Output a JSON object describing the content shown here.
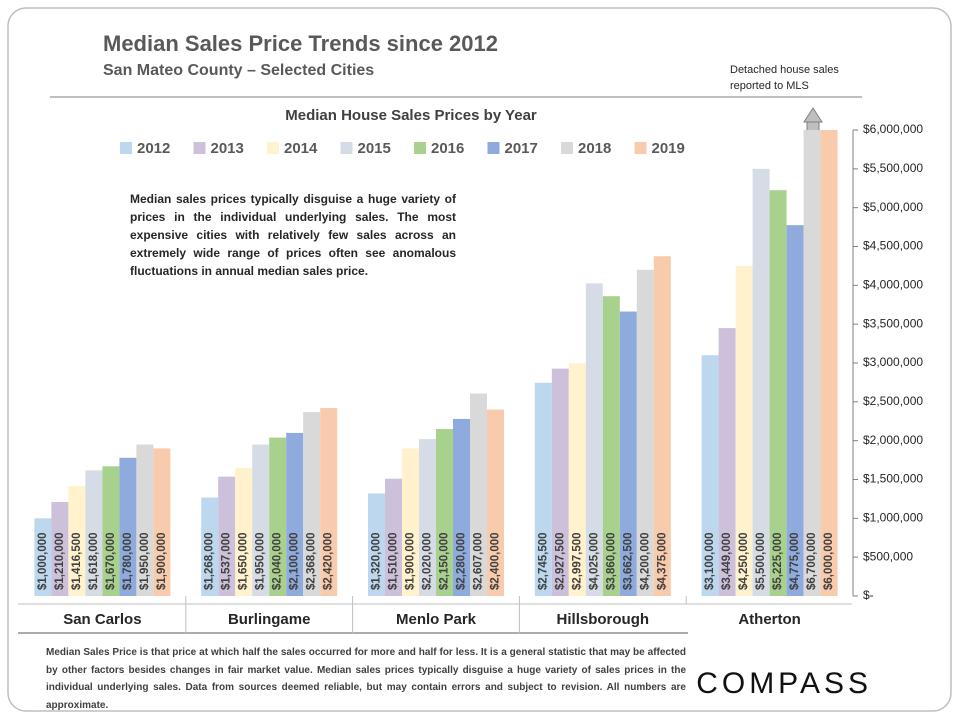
{
  "chart_data": {
    "type": "bar",
    "title": "Median Sales Price Trends since 2012",
    "subtitle": "San Mateo County – Selected Cities",
    "chart_title": "Median House Sales Prices by Year",
    "annotation": "Detached house sales reported to MLS",
    "description": "Median sales prices typically disguise a huge variety of prices in the individual underlying sales. The most expensive cities with relatively few sales across an extremely wide range of prices often see anomalous fluctuations in annual median sales price.",
    "footnote": "Median Sales Price is that price at which half the sales occurred for more and half for less. It is a general statistic that may be affected by other factors besides changes in fair market value. Median sales prices typically disguise a huge variety of sales prices in the individual underlying sales. Data from sources deemed reliable, but may contain errors and subject to revision.  All numbers are approximate.",
    "logo": "COMPASS",
    "categories": [
      "San Carlos",
      "Burlingame",
      "Menlo Park",
      "Hillsborough",
      "Atherton"
    ],
    "series": [
      {
        "name": "2012",
        "color": "#bdd7ee",
        "values": [
          1000000,
          1268000,
          1320000,
          2745500,
          3100000
        ],
        "value_labels": [
          "$1,000,000",
          "$1,268,000",
          "$1,320,000",
          "$2,745,500",
          "$3,100,000"
        ]
      },
      {
        "name": "2013",
        "color": "#ccc0da",
        "values": [
          1210000,
          1537000,
          1510000,
          2927500,
          3449000
        ],
        "value_labels": [
          "$1,210,000",
          "$1,537,000",
          "$1,510,000",
          "$2,927,500",
          "$3,449,000"
        ]
      },
      {
        "name": "2014",
        "color": "#fff2cc",
        "values": [
          1416500,
          1650000,
          1900000,
          2997500,
          4250000
        ],
        "value_labels": [
          "$1,416,500",
          "$1,650,000",
          "$1,900,000",
          "$2,997,500",
          "$4,250,000"
        ]
      },
      {
        "name": "2015",
        "color": "#d6dce5",
        "values": [
          1618000,
          1950000,
          2020000,
          4025000,
          5500000
        ],
        "value_labels": [
          "$1,618,000",
          "$1,950,000",
          "$2,020,000",
          "$4,025,000",
          "$5,500,000"
        ]
      },
      {
        "name": "2016",
        "color": "#a9d18e",
        "values": [
          1670000,
          2040000,
          2150000,
          3860000,
          5225000
        ],
        "value_labels": [
          "$1,670,000",
          "$2,040,000",
          "$2,150,000",
          "$3,860,000",
          "$5,225,000"
        ]
      },
      {
        "name": "2017",
        "color": "#8faadc",
        "values": [
          1780000,
          2100000,
          2280000,
          3662500,
          4775000
        ],
        "value_labels": [
          "$1,780,000",
          "$2,100,000",
          "$2,280,000",
          "$3,662,500",
          "$4,775,000"
        ]
      },
      {
        "name": "2018",
        "color": "#d9d9d9",
        "values": [
          1950000,
          2368000,
          2607000,
          4200000,
          6700000
        ],
        "value_labels": [
          "$1,950,000",
          "$2,368,000",
          "$2,607,000",
          "$4,200,000",
          "$6,700,000"
        ]
      },
      {
        "name": "2019",
        "color": "#f8cbad",
        "values": [
          1900000,
          2420000,
          2400000,
          4375000,
          6000000
        ],
        "value_labels": [
          "$1,900,000",
          "$2,420,000",
          "$2,400,000",
          "$4,375,000",
          "$6,000,000"
        ]
      }
    ],
    "ylim": [
      0,
      6000000
    ],
    "yticks": [
      {
        "value": 0,
        "label": "$-"
      },
      {
        "value": 500000,
        "label": "$500,000"
      },
      {
        "value": 1000000,
        "label": "$1,000,000"
      },
      {
        "value": 1500000,
        "label": "$1,500,000"
      },
      {
        "value": 2000000,
        "label": "$2,000,000"
      },
      {
        "value": 2500000,
        "label": "$2,500,000"
      },
      {
        "value": 3000000,
        "label": "$3,000,000"
      },
      {
        "value": 3500000,
        "label": "$3,500,000"
      },
      {
        "value": 4000000,
        "label": "$4,000,000"
      },
      {
        "value": 4500000,
        "label": "$4,500,000"
      },
      {
        "value": 5000000,
        "label": "$5,000,000"
      },
      {
        "value": 5500000,
        "label": "$5,500,000"
      },
      {
        "value": 6000000,
        "label": "$6,000,000"
      }
    ],
    "grid": false,
    "legend": "top"
  }
}
